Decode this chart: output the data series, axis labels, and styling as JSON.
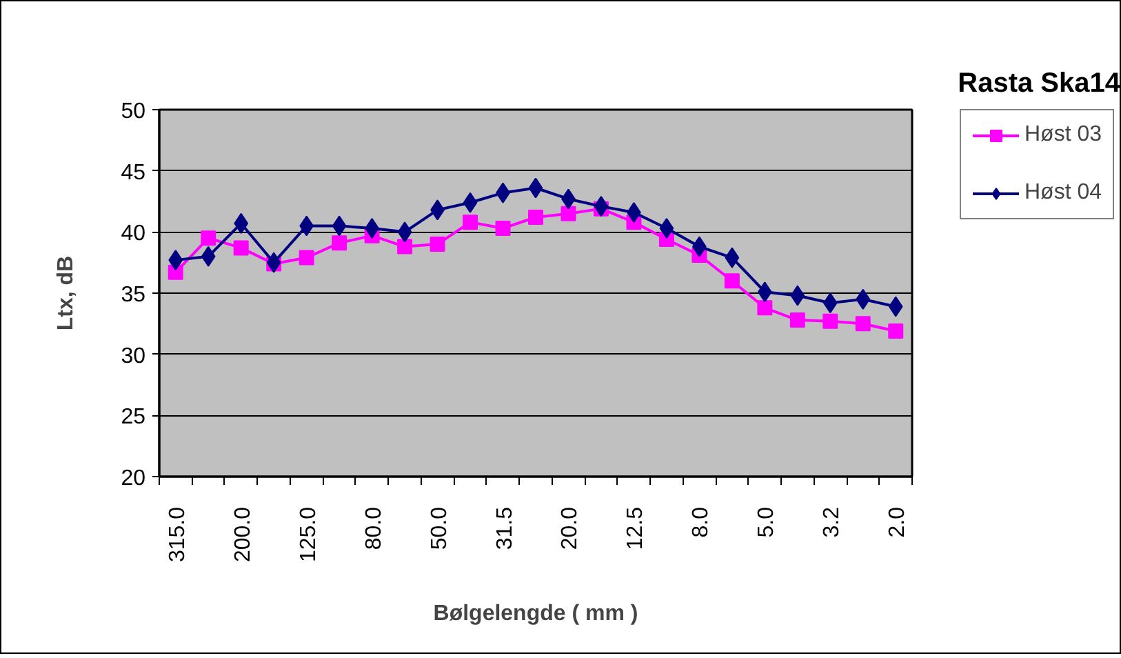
{
  "chart_data": {
    "type": "line",
    "title": "Rasta Ska14",
    "xlabel": "Bølgelengde ( mm )",
    "ylabel": "Ltx, dB",
    "categories": [
      "315.0",
      null,
      "200.0",
      null,
      "125.0",
      null,
      "80.0",
      null,
      "50.0",
      null,
      "31.5",
      null,
      "20.0",
      null,
      "12.5",
      null,
      "8.0",
      null,
      "5.0",
      null,
      "3.2",
      null,
      "2.0"
    ],
    "series": [
      {
        "name": "Høst 03",
        "color": "#ff00ff",
        "marker": "square",
        "values": [
          36.7,
          39.5,
          38.7,
          37.4,
          37.9,
          39.1,
          39.7,
          38.8,
          39.0,
          40.8,
          40.3,
          41.2,
          41.5,
          41.9,
          40.8,
          39.4,
          38.1,
          36.0,
          33.8,
          32.8,
          32.7,
          32.5,
          31.9
        ]
      },
      {
        "name": "Høst 04",
        "color": "#000080",
        "marker": "diamond",
        "values": [
          37.7,
          38.0,
          40.7,
          37.5,
          40.5,
          40.5,
          40.3,
          40.0,
          41.8,
          42.4,
          43.2,
          43.6,
          42.7,
          42.1,
          41.6,
          40.3,
          38.8,
          37.9,
          35.1,
          34.8,
          34.2,
          34.5,
          33.9
        ]
      }
    ],
    "ylim": [
      20,
      50
    ],
    "yticks": [
      20,
      25,
      30,
      35,
      40,
      45,
      50
    ],
    "grid": "y",
    "legend": "right",
    "line_style": "solid"
  }
}
